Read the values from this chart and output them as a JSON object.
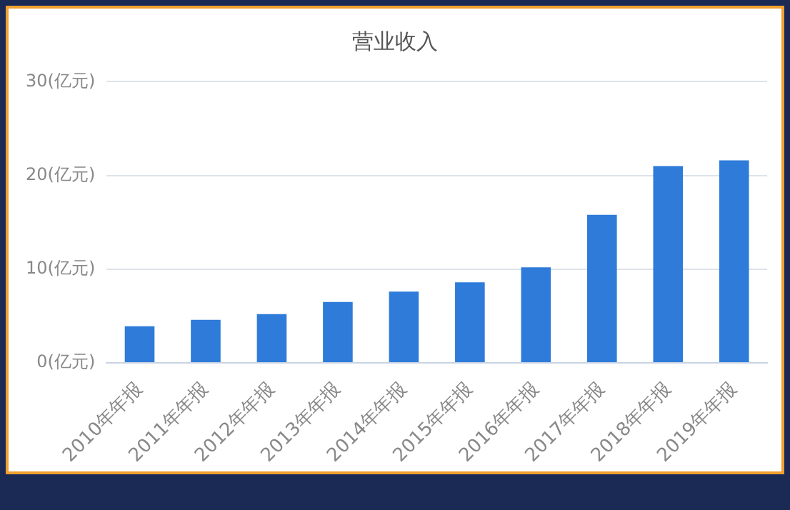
{
  "chart_data": {
    "type": "bar",
    "title": "营业收入",
    "categories": [
      "2010年年报",
      "2011年年报",
      "2012年年报",
      "2013年年报",
      "2014年年报",
      "2015年年报",
      "2016年年报",
      "2017年年报",
      "2018年年报",
      "2019年年报"
    ],
    "values": [
      3.9,
      4.6,
      5.2,
      6.5,
      7.6,
      8.6,
      10.2,
      15.8,
      21.0,
      21.6
    ],
    "color": "#2e7bd9",
    "ylim": [
      0,
      30
    ],
    "yticks": [
      {
        "value": 0,
        "label": "0(亿元)"
      },
      {
        "value": 10,
        "label": "10(亿元)"
      },
      {
        "value": 20,
        "label": "20(亿元)"
      },
      {
        "value": 30,
        "label": "30(亿元)"
      }
    ],
    "grid": "y",
    "legend": false
  }
}
